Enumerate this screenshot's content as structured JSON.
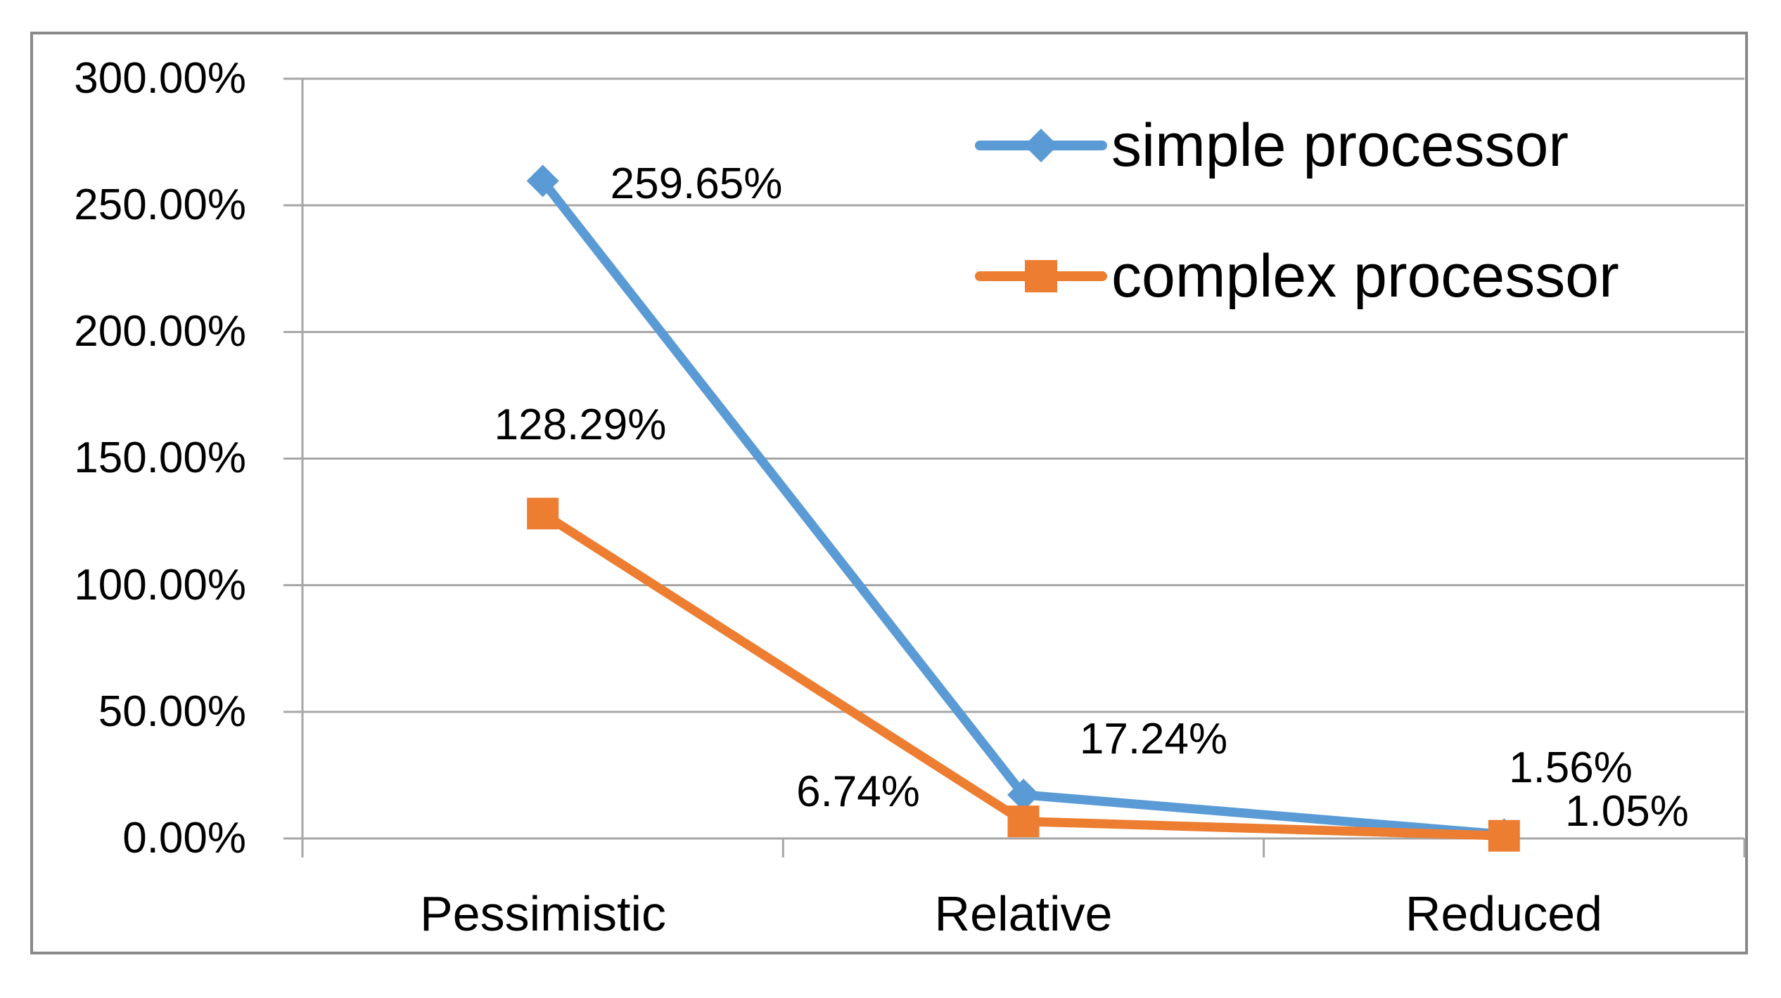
{
  "chart_data": {
    "type": "line",
    "categories": [
      "Pessimistic",
      "Relative",
      "Reduced"
    ],
    "series": [
      {
        "name": "simple processor",
        "color": "#5B9BD5",
        "marker": "diamond",
        "values": [
          259.65,
          17.24,
          1.56
        ],
        "labels": [
          "259.65%",
          "17.24%",
          "1.56%"
        ]
      },
      {
        "name": "complex processor",
        "color": "#ED7D31",
        "marker": "square",
        "values": [
          128.29,
          6.74,
          1.05
        ],
        "labels": [
          "128.29%",
          "6.74%",
          "1.05%"
        ]
      }
    ],
    "y_axis": {
      "min": 0,
      "max": 300,
      "step": 50,
      "tick_labels": [
        "0.00%",
        "50.00%",
        "100.00%",
        "150.00%",
        "200.00%",
        "250.00%",
        "300.00%"
      ]
    },
    "x_axis": {
      "label": ""
    },
    "title": "",
    "grid": true,
    "legend_position": "inside-top-right",
    "colors": {
      "gridline": "#A6A6A6",
      "axis": "#A6A6A6",
      "frame_border": "#898989",
      "background": "#FFFFFF",
      "text": "#000000"
    }
  }
}
